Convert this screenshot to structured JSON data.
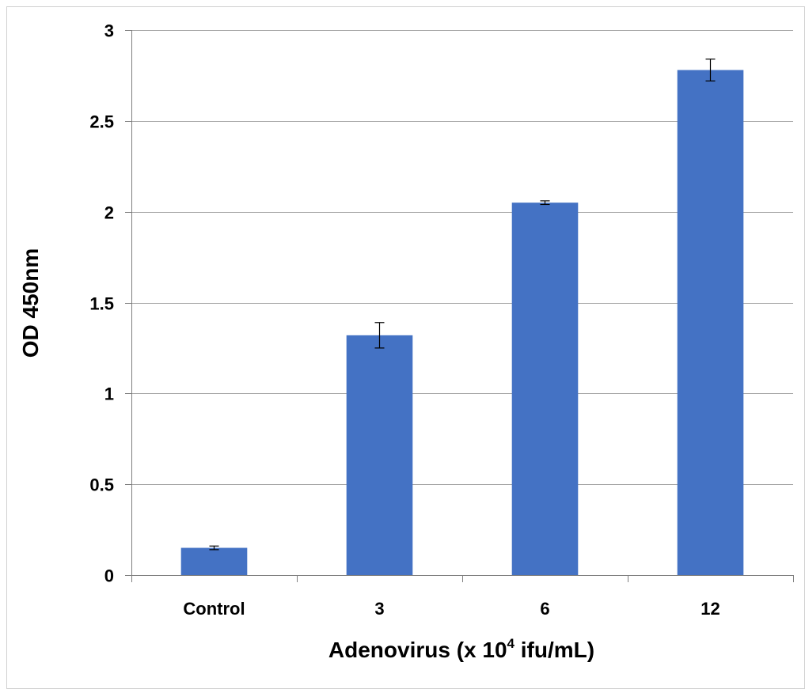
{
  "chart_data": {
    "type": "bar",
    "categories": [
      "Control",
      "3",
      "6",
      "12"
    ],
    "values": [
      0.15,
      1.32,
      2.05,
      2.78
    ],
    "errors": [
      0.01,
      0.07,
      0.01,
      0.06
    ],
    "title": "",
    "xlabel": {
      "prefix": "Adenovirus (x 10",
      "superscript": "4",
      "suffix": " ifu/mL)"
    },
    "ylabel": "OD 450nm",
    "ylim": [
      0,
      3
    ],
    "yticks": [
      "0",
      "0.5",
      "1",
      "1.5",
      "2",
      "2.5",
      "3"
    ],
    "ytick_values": [
      0,
      0.5,
      1,
      1.5,
      2,
      2.5,
      3
    ],
    "grid": true,
    "legend": "none",
    "bar_color": "#4472c4"
  }
}
